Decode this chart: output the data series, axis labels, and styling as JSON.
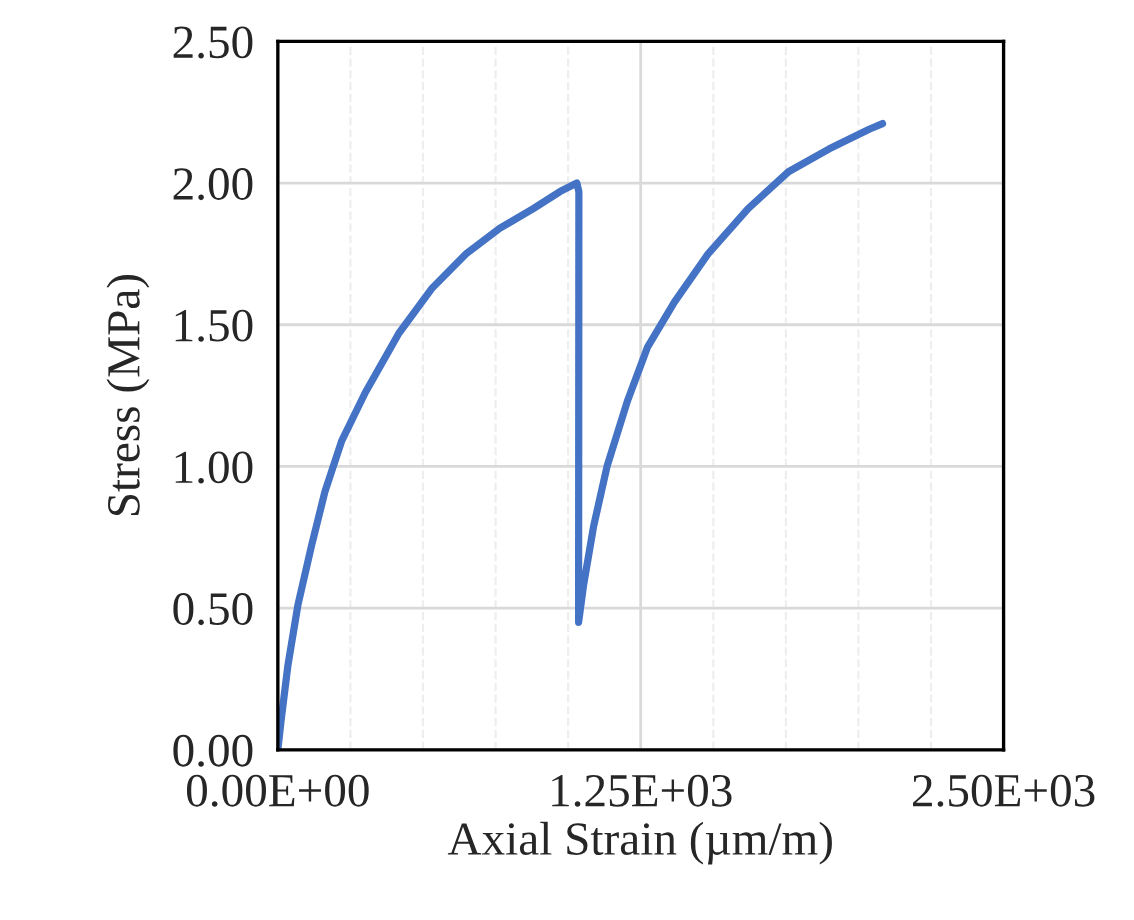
{
  "chart_data": {
    "type": "line",
    "xlabel": "Axial Strain (µm/m)",
    "ylabel": "Stress (MPa)",
    "xlim": [
      0,
      2500
    ],
    "xticks": [
      {
        "value": 0,
        "label": "0.00E+00"
      },
      {
        "value": 250,
        "label": null
      },
      {
        "value": 500,
        "label": null
      },
      {
        "value": 750,
        "label": null
      },
      {
        "value": 1000,
        "label": null
      },
      {
        "value": 1250,
        "label": "1.25E+03"
      },
      {
        "value": 1500,
        "label": null
      },
      {
        "value": 1750,
        "label": null
      },
      {
        "value": 2000,
        "label": null
      },
      {
        "value": 2250,
        "label": null
      },
      {
        "value": 2500,
        "label": "2.50E+03"
      }
    ],
    "ylim": [
      0,
      2.5
    ],
    "yticks": [
      {
        "value": 0,
        "label": "0.00"
      },
      {
        "value": 0.5,
        "label": "0.50"
      },
      {
        "value": 1.0,
        "label": "1.00"
      },
      {
        "value": 1.5,
        "label": "1.50"
      },
      {
        "value": 2.0,
        "label": "2.00"
      },
      {
        "value": 2.5,
        "label": "2.50"
      }
    ],
    "grid": true,
    "legend": false,
    "marker": "none",
    "line_style": "solid",
    "series": [
      {
        "color": "#4472c4",
        "x": [
          0,
          12,
          35,
          69,
          116,
          162,
          220,
          301,
          417,
          532,
          648,
          764,
          880,
          972,
          1030,
          1037,
          1036,
          1053,
          1088,
          1134,
          1204,
          1273,
          1366,
          1482,
          1620,
          1759,
          1898,
          2037,
          2083
        ],
        "values": [
          0,
          0.11,
          0.3,
          0.51,
          0.72,
          0.91,
          1.09,
          1.26,
          1.47,
          1.63,
          1.75,
          1.84,
          1.91,
          1.97,
          2.0,
          1.97,
          0.45,
          0.58,
          0.79,
          1.0,
          1.23,
          1.42,
          1.58,
          1.75,
          1.91,
          2.04,
          2.12,
          2.19,
          2.21
        ]
      }
    ]
  }
}
